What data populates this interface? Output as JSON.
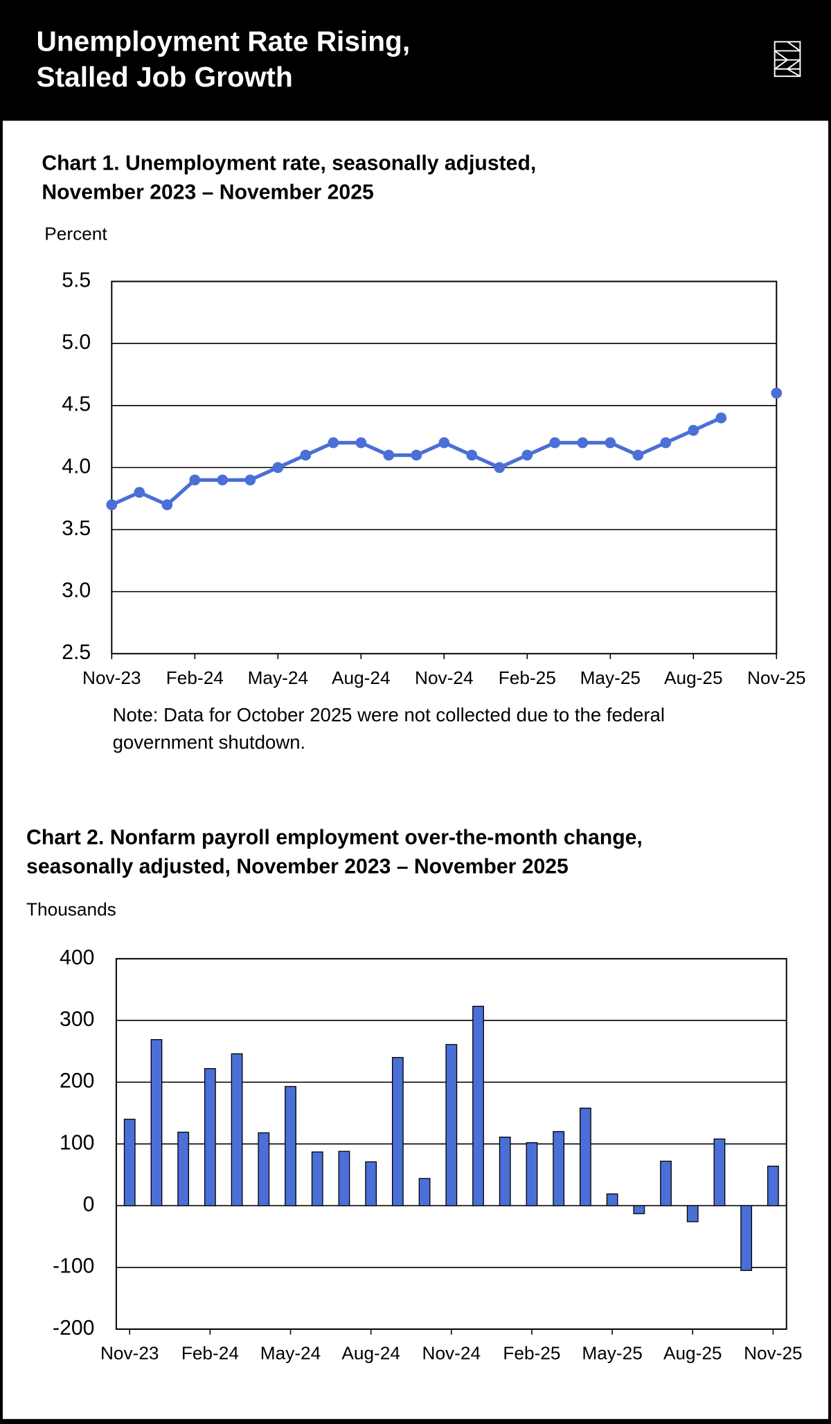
{
  "header": {
    "title_lines": [
      "Unemployment Rate Rising,",
      "Stalled Job Growth"
    ]
  },
  "chart_data": [
    {
      "type": "line",
      "title_lines": [
        "Chart 1. Unemployment rate, seasonally adjusted,",
        "November 2023 – November 2025"
      ],
      "y_label": "Percent",
      "note_lines": [
        "Note: Data for October 2025 were not collected due to the federal",
        "government shutdown."
      ],
      "categories": [
        "Nov-23",
        null,
        null,
        "Feb-24",
        null,
        null,
        "May-24",
        null,
        null,
        "Aug-24",
        null,
        null,
        "Nov-24",
        null,
        null,
        "Feb-25",
        null,
        null,
        "May-25",
        null,
        null,
        "Aug-25",
        null,
        null,
        "Nov-25"
      ],
      "values": [
        3.7,
        3.8,
        3.7,
        3.9,
        3.9,
        3.9,
        4.0,
        4.1,
        4.2,
        4.2,
        4.1,
        4.1,
        4.2,
        4.1,
        4.0,
        4.1,
        4.2,
        4.2,
        4.2,
        4.1,
        4.2,
        4.3,
        4.4,
        null,
        4.6
      ],
      "color": "#4a6fd6",
      "ylim": [
        2.5,
        5.5
      ],
      "yticks": [
        2.5,
        {
          "value": 3,
          "label": "3.0"
        },
        3.5,
        {
          "value": 4,
          "label": "4.0"
        },
        4.5,
        {
          "value": 5,
          "label": "5.0"
        },
        5.5
      ],
      "grid": true
    },
    {
      "type": "bar",
      "title_lines": [
        "Chart 2. Nonfarm payroll employment over-the-month change,",
        "seasonally adjusted, November 2023 – November 2025"
      ],
      "y_label": "Thousands",
      "categories": [
        "Nov-23",
        null,
        null,
        "Feb-24",
        null,
        null,
        "May-24",
        null,
        null,
        "Aug-24",
        null,
        null,
        "Nov-24",
        null,
        null,
        "Feb-25",
        null,
        null,
        "May-25",
        null,
        null,
        "Aug-25",
        null,
        null,
        "Nov-25"
      ],
      "values": [
        140,
        269,
        119,
        222,
        246,
        118,
        193,
        87,
        88,
        71,
        240,
        44,
        261,
        323,
        111,
        102,
        120,
        158,
        19,
        -13,
        72,
        -26,
        108,
        -105,
        64
      ],
      "color": "#4a6fd6",
      "ylim": [
        -200,
        400
      ],
      "yticks": [
        -200,
        -100,
        0,
        100,
        200,
        300,
        400
      ],
      "grid": true
    }
  ]
}
